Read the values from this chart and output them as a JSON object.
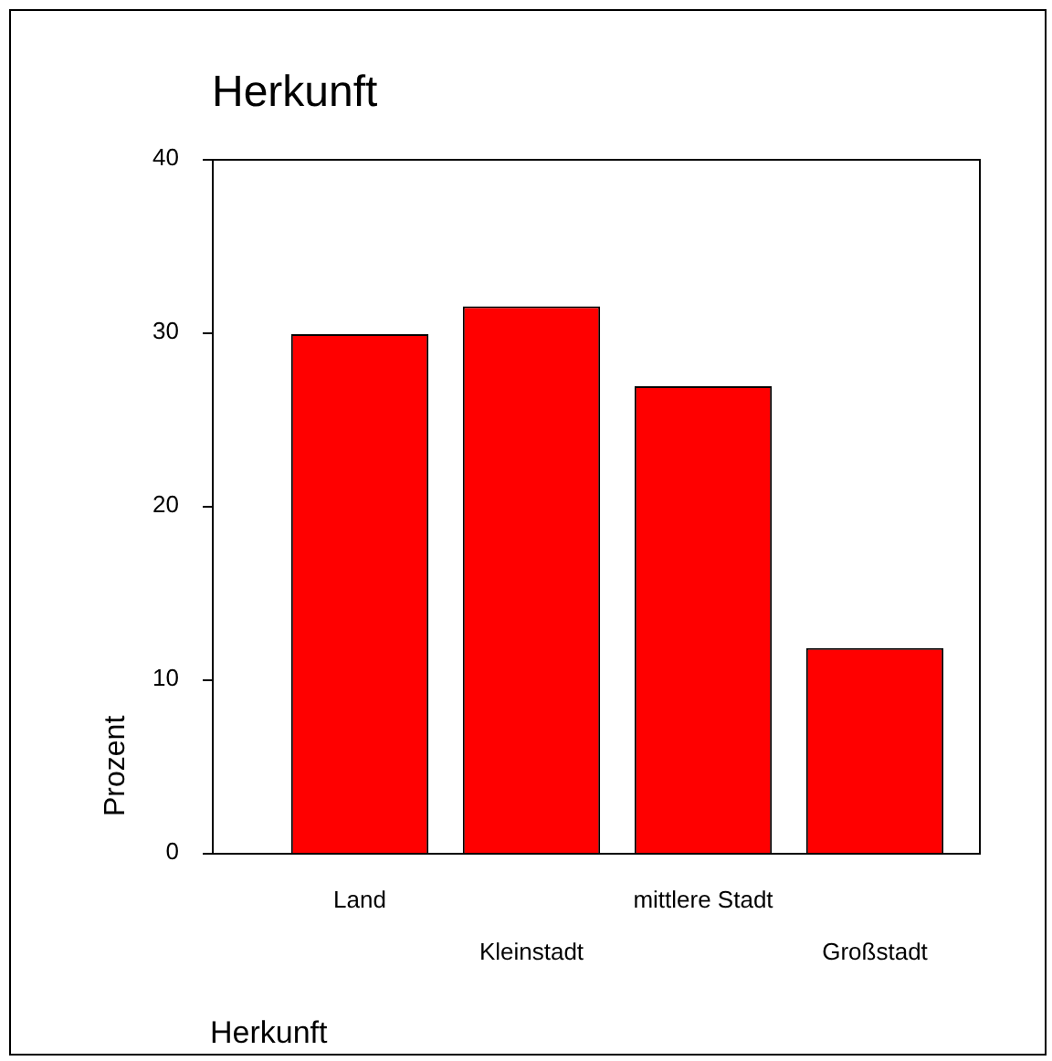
{
  "chart_data": {
    "type": "bar",
    "title": "Herkunft",
    "xlabel": "Herkunft",
    "ylabel": "Prozent",
    "categories": [
      "Land",
      "Kleinstadt",
      "mittlere Stadt",
      "Großstadt"
    ],
    "values": [
      29.9,
      31.5,
      26.9,
      11.8
    ],
    "color": "#ff0000",
    "ylim": [
      0,
      40
    ],
    "yticks": [
      0,
      10,
      20,
      30,
      40
    ],
    "grid": false,
    "legend": false
  }
}
